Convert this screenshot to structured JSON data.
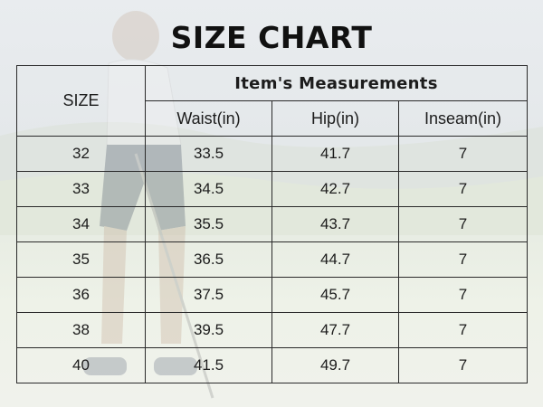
{
  "title": "SIZE CHART",
  "table": {
    "size_header": "SIZE",
    "group_header": "Item's Measurements",
    "columns": [
      "Waist(in)",
      "Hip(in)",
      "Inseam(in)"
    ],
    "rows": [
      {
        "size": "32",
        "waist": "33.5",
        "hip": "41.7",
        "inseam": "7"
      },
      {
        "size": "33",
        "waist": "34.5",
        "hip": "42.7",
        "inseam": "7"
      },
      {
        "size": "34",
        "waist": "35.5",
        "hip": "43.7",
        "inseam": "7"
      },
      {
        "size": "35",
        "waist": "36.5",
        "hip": "44.7",
        "inseam": "7"
      },
      {
        "size": "36",
        "waist": "37.5",
        "hip": "45.7",
        "inseam": "7"
      },
      {
        "size": "38",
        "waist": "39.5",
        "hip": "47.7",
        "inseam": "7"
      },
      {
        "size": "40",
        "waist": "41.5",
        "hip": "49.7",
        "inseam": "7"
      }
    ]
  }
}
